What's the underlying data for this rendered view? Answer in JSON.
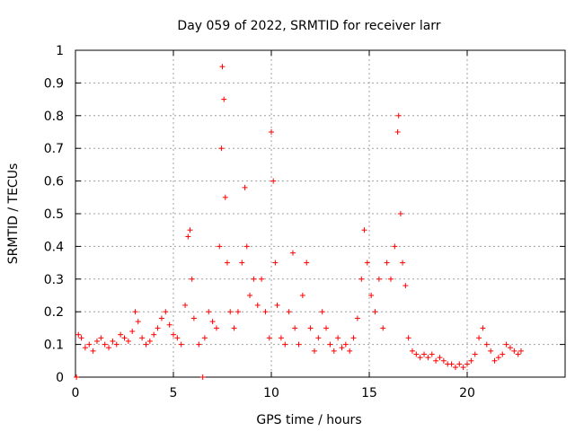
{
  "chart_data": {
    "type": "scatter",
    "title": "Day 059 of 2022, SRMTID for receiver larr",
    "xlabel": "GPS time / hours",
    "ylabel": "SRMTID / TECUs",
    "xlim": [
      0,
      25
    ],
    "ylim": [
      0,
      1
    ],
    "xticks": [
      0,
      5,
      10,
      15,
      20
    ],
    "xtick_labels": [
      "0",
      "5",
      "10",
      "15",
      "20"
    ],
    "yticks": [
      0,
      0.1,
      0.2,
      0.3,
      0.4,
      0.5,
      0.6,
      0.7,
      0.8,
      0.9,
      1
    ],
    "ytick_labels": [
      "0",
      "0.1",
      "0.2",
      "0.3",
      "0.4",
      "0.5",
      "0.6",
      "0.7",
      "0.8",
      "0.9",
      "1"
    ],
    "grid": true,
    "marker": "+",
    "color": "#ff0000",
    "series": [
      {
        "name": "SRMTID",
        "points": [
          [
            0.05,
            0.0
          ],
          [
            0.15,
            0.13
          ],
          [
            0.3,
            0.12
          ],
          [
            0.5,
            0.09
          ],
          [
            0.7,
            0.1
          ],
          [
            0.9,
            0.08
          ],
          [
            1.1,
            0.11
          ],
          [
            1.3,
            0.12
          ],
          [
            1.5,
            0.1
          ],
          [
            1.7,
            0.09
          ],
          [
            1.9,
            0.11
          ],
          [
            2.1,
            0.1
          ],
          [
            2.3,
            0.13
          ],
          [
            2.5,
            0.12
          ],
          [
            2.7,
            0.11
          ],
          [
            2.9,
            0.14
          ],
          [
            3.05,
            0.2
          ],
          [
            3.2,
            0.17
          ],
          [
            3.4,
            0.12
          ],
          [
            3.6,
            0.1
          ],
          [
            3.8,
            0.11
          ],
          [
            4.0,
            0.13
          ],
          [
            4.2,
            0.15
          ],
          [
            4.4,
            0.18
          ],
          [
            4.6,
            0.2
          ],
          [
            4.8,
            0.16
          ],
          [
            5.0,
            0.13
          ],
          [
            5.2,
            0.12
          ],
          [
            5.4,
            0.1
          ],
          [
            5.6,
            0.22
          ],
          [
            5.75,
            0.43
          ],
          [
            5.85,
            0.45
          ],
          [
            5.95,
            0.3
          ],
          [
            6.05,
            0.18
          ],
          [
            6.3,
            0.1
          ],
          [
            6.5,
            0.0
          ],
          [
            6.6,
            0.12
          ],
          [
            6.8,
            0.2
          ],
          [
            7.0,
            0.17
          ],
          [
            7.2,
            0.15
          ],
          [
            7.35,
            0.4
          ],
          [
            7.45,
            0.7
          ],
          [
            7.5,
            0.95
          ],
          [
            7.58,
            0.85
          ],
          [
            7.65,
            0.55
          ],
          [
            7.75,
            0.35
          ],
          [
            7.9,
            0.2
          ],
          [
            8.1,
            0.15
          ],
          [
            8.3,
            0.2
          ],
          [
            8.5,
            0.35
          ],
          [
            8.65,
            0.58
          ],
          [
            8.75,
            0.4
          ],
          [
            8.9,
            0.25
          ],
          [
            9.1,
            0.3
          ],
          [
            9.3,
            0.22
          ],
          [
            9.5,
            0.3
          ],
          [
            9.7,
            0.2
          ],
          [
            9.9,
            0.12
          ],
          [
            10.0,
            0.75
          ],
          [
            10.1,
            0.6
          ],
          [
            10.2,
            0.35
          ],
          [
            10.3,
            0.22
          ],
          [
            10.5,
            0.12
          ],
          [
            10.7,
            0.1
          ],
          [
            10.9,
            0.2
          ],
          [
            11.1,
            0.38
          ],
          [
            11.2,
            0.15
          ],
          [
            11.4,
            0.1
          ],
          [
            11.6,
            0.25
          ],
          [
            11.8,
            0.35
          ],
          [
            12.0,
            0.15
          ],
          [
            12.2,
            0.08
          ],
          [
            12.4,
            0.12
          ],
          [
            12.6,
            0.2
          ],
          [
            12.8,
            0.15
          ],
          [
            13.0,
            0.1
          ],
          [
            13.2,
            0.08
          ],
          [
            13.4,
            0.12
          ],
          [
            13.6,
            0.09
          ],
          [
            13.8,
            0.1
          ],
          [
            14.0,
            0.08
          ],
          [
            14.2,
            0.12
          ],
          [
            14.4,
            0.18
          ],
          [
            14.6,
            0.3
          ],
          [
            14.75,
            0.45
          ],
          [
            14.9,
            0.35
          ],
          [
            15.1,
            0.25
          ],
          [
            15.3,
            0.2
          ],
          [
            15.5,
            0.3
          ],
          [
            15.7,
            0.15
          ],
          [
            15.9,
            0.35
          ],
          [
            16.1,
            0.3
          ],
          [
            16.3,
            0.4
          ],
          [
            16.45,
            0.75
          ],
          [
            16.5,
            0.8
          ],
          [
            16.6,
            0.5
          ],
          [
            16.7,
            0.35
          ],
          [
            16.85,
            0.28
          ],
          [
            17.0,
            0.12
          ],
          [
            17.2,
            0.08
          ],
          [
            17.4,
            0.07
          ],
          [
            17.6,
            0.06
          ],
          [
            17.8,
            0.07
          ],
          [
            18.0,
            0.06
          ],
          [
            18.2,
            0.07
          ],
          [
            18.4,
            0.05
          ],
          [
            18.6,
            0.06
          ],
          [
            18.8,
            0.05
          ],
          [
            19.0,
            0.04
          ],
          [
            19.2,
            0.04
          ],
          [
            19.4,
            0.03
          ],
          [
            19.6,
            0.04
          ],
          [
            19.8,
            0.03
          ],
          [
            20.0,
            0.04
          ],
          [
            20.2,
            0.05
          ],
          [
            20.4,
            0.07
          ],
          [
            20.6,
            0.12
          ],
          [
            20.8,
            0.15
          ],
          [
            21.0,
            0.1
          ],
          [
            21.2,
            0.08
          ],
          [
            21.4,
            0.05
          ],
          [
            21.6,
            0.06
          ],
          [
            21.8,
            0.07
          ],
          [
            22.0,
            0.1
          ],
          [
            22.2,
            0.09
          ],
          [
            22.4,
            0.08
          ],
          [
            22.6,
            0.07
          ],
          [
            22.75,
            0.08
          ]
        ]
      }
    ]
  }
}
